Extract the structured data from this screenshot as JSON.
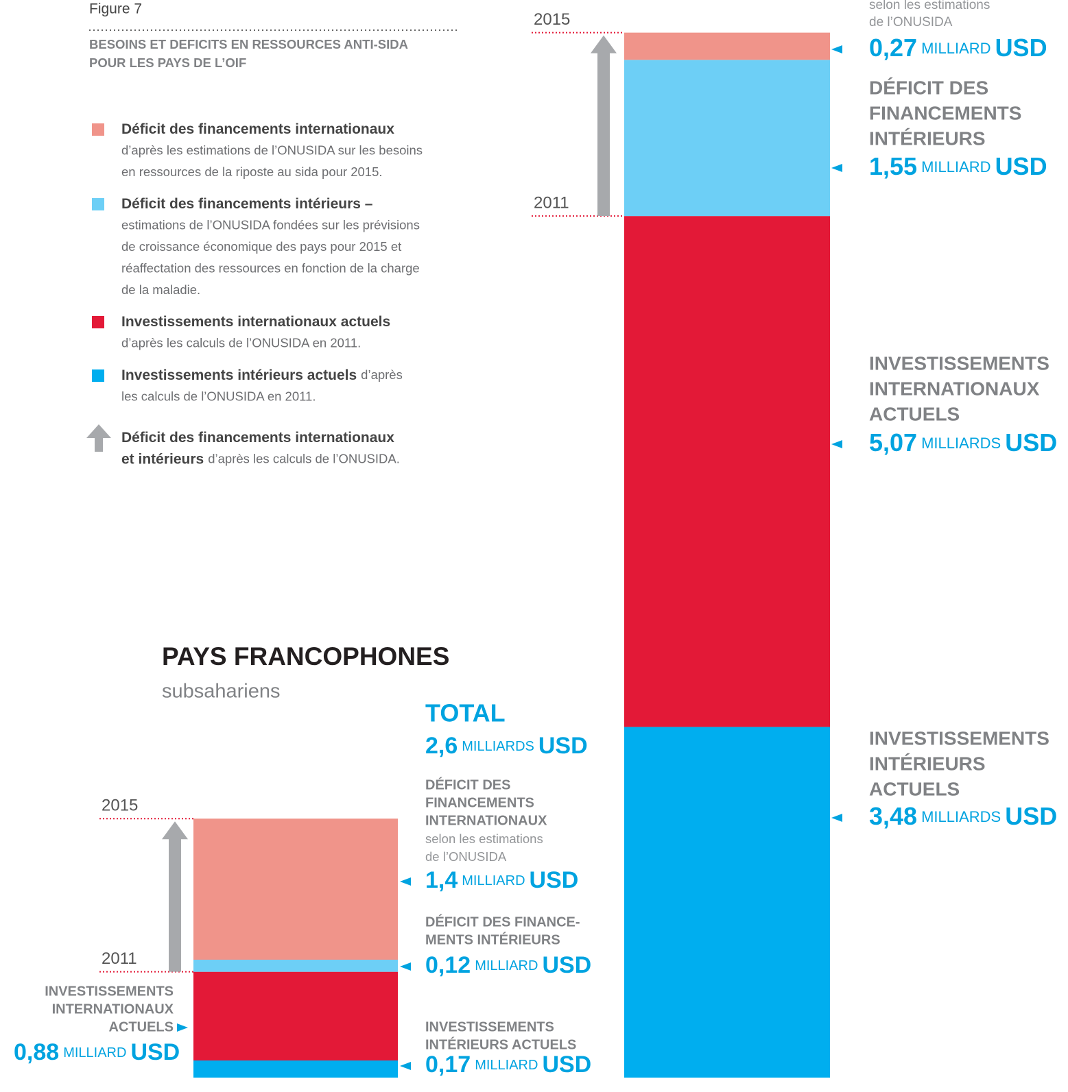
{
  "figure": "Figure 7",
  "title": [
    "BESOINS ET DEFICITS EN RESSOURCES ANTI-SIDA",
    "POUR LES PAYS DE L’OIF"
  ],
  "legend": [
    {
      "color": "#f0948a",
      "title": [
        "Déficit des financements internationaux"
      ],
      "lines": [
        "d’après les estimations de l’ONUSIDA sur les besoins",
        "en ressources de la riposte au sida pour 2015."
      ]
    },
    {
      "color": "#6dcff6",
      "title": [
        "Déficit des financements intérieurs –"
      ],
      "lines": [
        "estimations de l’ONUSIDA fondées sur les prévisions",
        "de croissance économique des pays pour 2015 et",
        "réaffectation des ressources en fonction de la charge",
        "de la maladie."
      ]
    },
    {
      "color": "#e31937",
      "title": [
        "Investissements internationaux actuels"
      ],
      "lines": [
        "d’après les calculs de l’ONUSIDA en 2011."
      ]
    },
    {
      "color": "#00aeef",
      "title": [
        "Investissements intérieurs actuels"
      ],
      "inline": "d’après",
      "lines": [
        "les calculs de l’ONUSIDA en 2011."
      ]
    },
    {
      "color": "#a7a9ac",
      "icon": "arrow",
      "title": [
        "Déficit des financements internationaux",
        "et intérieurs"
      ],
      "inline": "d’après les calculs de l’ONUSIDA.",
      "lines": []
    }
  ],
  "chart_data": [
    {
      "type": "stacked_bar",
      "years": [
        "2015",
        "2011"
      ],
      "series": [
        {
          "name": [
            "INVESTISSEMENTS",
            "INTÉRIEURS",
            "ACTUELS"
          ],
          "color": "#00aeef",
          "values": [
            3.48
          ],
          "value_labels": [
            "3,48"
          ],
          "unit": "MILLIARDS",
          "currency": "USD"
        },
        {
          "name": [
            "INVESTISSEMENTS",
            "INTERNATIONAUX",
            "ACTUELS"
          ],
          "color": "#e31937",
          "values": [
            5.07
          ],
          "value_labels": [
            "5,07"
          ],
          "unit": "MILLIARDS",
          "currency": "USD"
        },
        {
          "name": [
            "DÉFICIT DES",
            "FINANCEMENTS",
            "INTÉRIEURS"
          ],
          "color": "#6dcff6",
          "values": [
            1.55
          ],
          "value_labels": [
            "1,55"
          ],
          "unit": "MILLIARD",
          "currency": "USD"
        },
        {
          "name": [],
          "note": [
            "selon les estimations",
            "de l’ONUSIDA"
          ],
          "color": "#f0948a",
          "values": [
            0.27
          ],
          "value_labels": [
            "0,27"
          ],
          "unit": "MILLIARD",
          "currency": "USD"
        }
      ]
    },
    {
      "type": "stacked_bar",
      "title": "PAYS FRANCOPHONES",
      "subtitle": "subsahariens",
      "years": [
        "2015",
        "2011"
      ],
      "total": {
        "name": "TOTAL",
        "value": 2.6,
        "value_label": "2,6",
        "unit": "MILLIARDS",
        "currency": "USD"
      },
      "series": [
        {
          "name": [
            "INVESTISSEMENTS",
            "INTÉRIEURS ACTUELS"
          ],
          "color": "#00aeef",
          "values": [
            0.17
          ],
          "value_labels": [
            "0,17"
          ],
          "unit": "MILLIARD",
          "currency": "USD"
        },
        {
          "name": [
            "INVESTISSEMENTS",
            "INTERNATIONAUX",
            "ACTUELS"
          ],
          "color": "#e31937",
          "values": [
            0.88
          ],
          "value_labels": [
            "0,88"
          ],
          "unit": "MILLIARD",
          "currency": "USD"
        },
        {
          "name": [
            "DÉFICIT DES FINANCE-",
            "MENTS INTÉRIEURS"
          ],
          "color": "#6dcff6",
          "values": [
            0.12
          ],
          "value_labels": [
            "0,12"
          ],
          "unit": "MILLIARD",
          "currency": "USD"
        },
        {
          "name": [
            "DÉFICIT DES",
            "FINANCEMENTS",
            "INTERNATIONAUX"
          ],
          "note": [
            "selon les estimations",
            "de l’ONUSIDA"
          ],
          "color": "#f0948a",
          "values": [
            1.4
          ],
          "value_labels": [
            "1,4"
          ],
          "unit": "MILLIARD",
          "currency": "USD"
        }
      ]
    }
  ]
}
